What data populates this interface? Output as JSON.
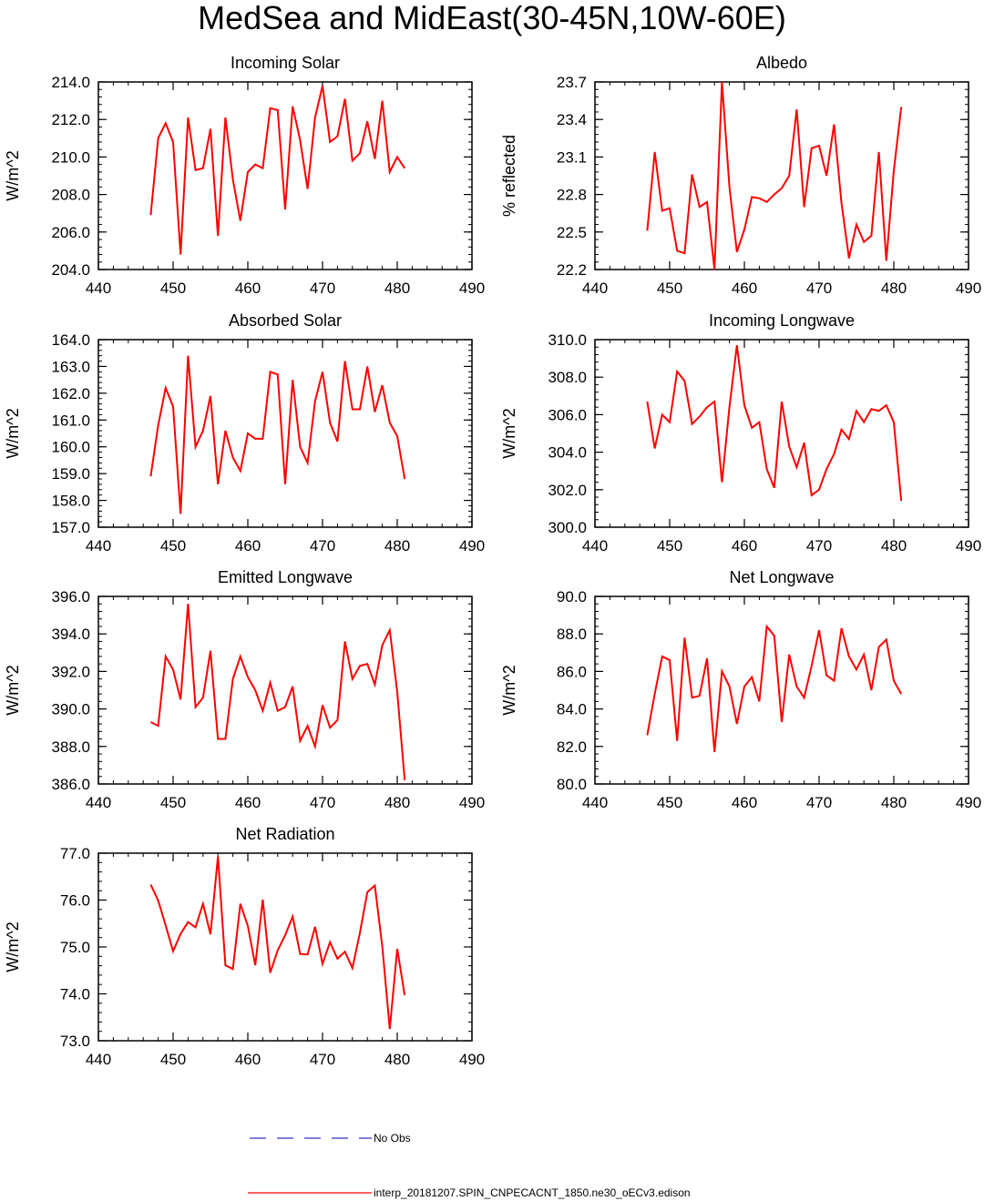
{
  "title": "MedSea and MidEast(30-45N,10W-60E)",
  "colors": {
    "model": "#ff0000",
    "obs": "#3333cc",
    "axis": "#000000"
  },
  "legend": {
    "obs_label": "No Obs",
    "model_label": "interp_20181207.SPIN_CNPECACNT_1850.ne30_oECv3.edison"
  },
  "chart_data": [
    {
      "type": "line",
      "title": "Incoming Solar",
      "xlabel": "",
      "ylabel": "W/m^2",
      "xlim": [
        440,
        490
      ],
      "ylim": [
        204,
        214
      ],
      "xticks": [
        "440",
        "450",
        "460",
        "470",
        "480",
        "490"
      ],
      "yticks": [
        "204.0",
        "206.0",
        "208.0",
        "210.0",
        "212.0",
        "214.0"
      ],
      "series": [
        {
          "name": "interp_20181207.SPIN_CNPECACNT_1850.ne30_oECv3.edison",
          "x": [
            447,
            448,
            449,
            450,
            451,
            452,
            453,
            454,
            455,
            456,
            457,
            458,
            459,
            460,
            461,
            462,
            463,
            464,
            465,
            466,
            467,
            468,
            469,
            470,
            471,
            472,
            473,
            474,
            475,
            476,
            477,
            478,
            479,
            480,
            481
          ],
          "values": [
            206.9,
            211.0,
            211.8,
            210.8,
            204.8,
            212.1,
            209.3,
            209.4,
            211.5,
            205.8,
            212.1,
            208.8,
            206.6,
            209.2,
            209.6,
            209.4,
            212.6,
            212.5,
            207.2,
            212.7,
            210.9,
            208.3,
            212.1,
            213.8,
            210.8,
            211.1,
            213.1,
            209.8,
            210.2,
            211.9,
            209.9,
            213.0,
            209.2,
            210.0,
            209.4
          ]
        }
      ]
    },
    {
      "type": "line",
      "title": "Albedo",
      "xlabel": "",
      "ylabel": "% reflected",
      "xlim": [
        440,
        490
      ],
      "ylim": [
        22.2,
        23.7
      ],
      "xticks": [
        "440",
        "450",
        "460",
        "470",
        "480",
        "490"
      ],
      "yticks": [
        "22.2",
        "22.5",
        "22.8",
        "23.1",
        "23.4",
        "23.7"
      ],
      "series": [
        {
          "name": "interp_20181207.SPIN_CNPECACNT_1850.ne30_oECv3.edison",
          "x": [
            447,
            448,
            449,
            450,
            451,
            452,
            453,
            454,
            455,
            456,
            457,
            458,
            459,
            460,
            461,
            462,
            463,
            464,
            465,
            466,
            467,
            468,
            469,
            470,
            471,
            472,
            473,
            474,
            475,
            476,
            477,
            478,
            479,
            480,
            481
          ],
          "values": [
            22.51,
            23.14,
            22.67,
            22.69,
            22.35,
            22.33,
            22.96,
            22.7,
            22.74,
            22.2,
            23.7,
            22.86,
            22.34,
            22.52,
            22.78,
            22.77,
            22.74,
            22.8,
            22.85,
            22.95,
            23.48,
            22.7,
            23.17,
            23.19,
            22.95,
            23.36,
            22.73,
            22.29,
            22.56,
            22.42,
            22.47,
            23.14,
            22.27,
            22.99,
            23.5
          ]
        }
      ]
    },
    {
      "type": "line",
      "title": "Absorbed Solar",
      "xlabel": "",
      "ylabel": "W/m^2",
      "xlim": [
        440,
        490
      ],
      "ylim": [
        157,
        164
      ],
      "xticks": [
        "440",
        "450",
        "460",
        "470",
        "480",
        "490"
      ],
      "yticks": [
        "157.0",
        "158.0",
        "159.0",
        "160.0",
        "161.0",
        "162.0",
        "163.0",
        "164.0"
      ],
      "series": [
        {
          "name": "interp_20181207.SPIN_CNPECACNT_1850.ne30_oECv3.edison",
          "x": [
            447,
            448,
            449,
            450,
            451,
            452,
            453,
            454,
            455,
            456,
            457,
            458,
            459,
            460,
            461,
            462,
            463,
            464,
            465,
            466,
            467,
            468,
            469,
            470,
            471,
            472,
            473,
            474,
            475,
            476,
            477,
            478,
            479,
            480,
            481
          ],
          "values": [
            158.9,
            160.8,
            162.2,
            161.5,
            157.5,
            163.4,
            160.0,
            160.6,
            161.9,
            158.6,
            160.6,
            159.6,
            159.1,
            160.5,
            160.3,
            160.3,
            162.8,
            162.7,
            158.6,
            162.5,
            160.0,
            159.4,
            161.7,
            162.8,
            160.9,
            160.2,
            163.2,
            161.4,
            161.4,
            163.0,
            161.3,
            162.3,
            160.9,
            160.4,
            158.8
          ]
        }
      ]
    },
    {
      "type": "line",
      "title": "Incoming Longwave",
      "xlabel": "",
      "ylabel": "W/m^2",
      "xlim": [
        440,
        490
      ],
      "ylim": [
        300,
        310
      ],
      "xticks": [
        "440",
        "450",
        "460",
        "470",
        "480",
        "490"
      ],
      "yticks": [
        "300.0",
        "302.0",
        "304.0",
        "306.0",
        "308.0",
        "310.0"
      ],
      "series": [
        {
          "name": "interp_20181207.SPIN_CNPECACNT_1850.ne30_oECv3.edison",
          "x": [
            447,
            448,
            449,
            450,
            451,
            452,
            453,
            454,
            455,
            456,
            457,
            458,
            459,
            460,
            461,
            462,
            463,
            464,
            465,
            466,
            467,
            468,
            469,
            470,
            471,
            472,
            473,
            474,
            475,
            476,
            477,
            478,
            479,
            480,
            481
          ],
          "values": [
            306.7,
            304.2,
            306.0,
            305.6,
            308.3,
            307.8,
            305.5,
            305.9,
            306.4,
            306.7,
            302.4,
            306.4,
            309.7,
            306.5,
            305.3,
            305.6,
            303.1,
            302.1,
            306.7,
            304.3,
            303.2,
            304.5,
            301.7,
            302.0,
            303.1,
            303.9,
            305.2,
            304.7,
            306.2,
            305.6,
            306.3,
            306.2,
            306.5,
            305.6,
            301.4
          ]
        }
      ]
    },
    {
      "type": "line",
      "title": "Emitted Longwave",
      "xlabel": "",
      "ylabel": "W/m^2",
      "xlim": [
        440,
        490
      ],
      "ylim": [
        386,
        396
      ],
      "xticks": [
        "440",
        "450",
        "460",
        "470",
        "480",
        "490"
      ],
      "yticks": [
        "386.0",
        "388.0",
        "390.0",
        "392.0",
        "394.0",
        "396.0"
      ],
      "series": [
        {
          "name": "interp_20181207.SPIN_CNPECACNT_1850.ne30_oECv3.edison",
          "x": [
            447,
            448,
            449,
            450,
            451,
            452,
            453,
            454,
            455,
            456,
            457,
            458,
            459,
            460,
            461,
            462,
            463,
            464,
            465,
            466,
            467,
            468,
            469,
            470,
            471,
            472,
            473,
            474,
            475,
            476,
            477,
            478,
            479,
            480,
            481
          ],
          "values": [
            389.3,
            389.1,
            392.8,
            392.1,
            390.5,
            395.6,
            390.1,
            390.6,
            393.1,
            388.4,
            388.4,
            391.6,
            392.8,
            391.7,
            391.0,
            389.9,
            391.4,
            389.9,
            390.1,
            391.2,
            388.3,
            389.1,
            388.0,
            390.2,
            389.0,
            389.4,
            393.6,
            391.6,
            392.3,
            392.4,
            391.3,
            393.4,
            394.2,
            390.9,
            386.2
          ]
        }
      ]
    },
    {
      "type": "line",
      "title": "Net Longwave",
      "xlabel": "",
      "ylabel": "W/m^2",
      "xlim": [
        440,
        490
      ],
      "ylim": [
        80,
        90
      ],
      "xticks": [
        "440",
        "450",
        "460",
        "470",
        "480",
        "490"
      ],
      "yticks": [
        "80.0",
        "82.0",
        "84.0",
        "86.0",
        "88.0",
        "90.0"
      ],
      "series": [
        {
          "name": "interp_20181207.SPIN_CNPECACNT_1850.ne30_oECv3.edison",
          "x": [
            447,
            448,
            449,
            450,
            451,
            452,
            453,
            454,
            455,
            456,
            457,
            458,
            459,
            460,
            461,
            462,
            463,
            464,
            465,
            466,
            467,
            468,
            469,
            470,
            471,
            472,
            473,
            474,
            475,
            476,
            477,
            478,
            479,
            480,
            481
          ],
          "values": [
            82.6,
            84.8,
            86.8,
            86.6,
            82.3,
            87.8,
            84.6,
            84.7,
            86.7,
            81.7,
            86.0,
            85.2,
            83.2,
            85.2,
            85.7,
            84.4,
            88.4,
            87.9,
            83.3,
            86.9,
            85.2,
            84.6,
            86.3,
            88.2,
            85.8,
            85.5,
            88.3,
            86.8,
            86.1,
            86.9,
            85.0,
            87.3,
            87.7,
            85.5,
            84.8
          ]
        }
      ]
    },
    {
      "type": "line",
      "title": "Net Radiation",
      "xlabel": "",
      "ylabel": "W/m^2",
      "xlim": [
        440,
        490
      ],
      "ylim": [
        73,
        77
      ],
      "xticks": [
        "440",
        "450",
        "460",
        "470",
        "480",
        "490"
      ],
      "yticks": [
        "73.0",
        "74.0",
        "75.0",
        "76.0",
        "77.0"
      ],
      "series": [
        {
          "name": "interp_20181207.SPIN_CNPECACNT_1850.ne30_oECv3.edison",
          "x": [
            447,
            448,
            449,
            450,
            451,
            452,
            453,
            454,
            455,
            456,
            457,
            458,
            459,
            460,
            461,
            462,
            463,
            464,
            465,
            466,
            467,
            468,
            469,
            470,
            471,
            472,
            473,
            474,
            475,
            476,
            477,
            478,
            479,
            480,
            481
          ],
          "values": [
            76.33,
            75.99,
            75.46,
            74.91,
            75.28,
            75.53,
            75.42,
            75.92,
            75.27,
            76.93,
            74.61,
            74.53,
            75.92,
            75.45,
            74.61,
            76.01,
            74.45,
            74.93,
            75.25,
            75.65,
            74.85,
            74.84,
            75.43,
            74.64,
            75.1,
            74.75,
            74.9,
            74.55,
            75.3,
            76.17,
            76.31,
            75.01,
            73.25,
            74.96,
            73.97
          ]
        }
      ]
    }
  ]
}
